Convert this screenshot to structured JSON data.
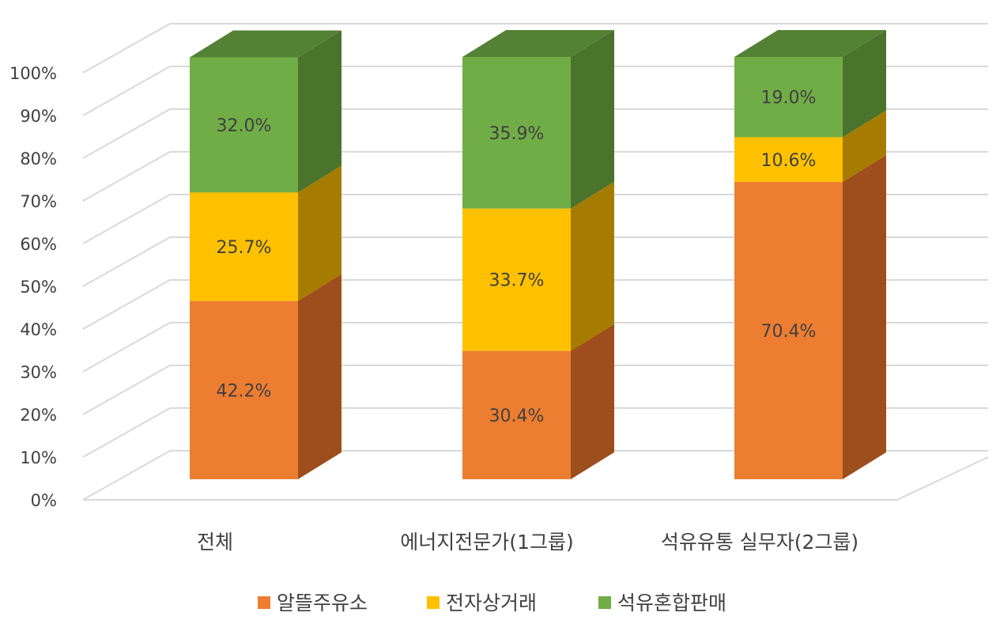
{
  "chart_data": {
    "type": "bar",
    "stacked": true,
    "percent_stacked": true,
    "three_d": true,
    "categories": [
      "전체",
      "에너지전문가(1그룹)",
      "석유유통 실무자(2그룹)"
    ],
    "series": [
      {
        "name": "알뜰주유소",
        "values": [
          42.2,
          30.4,
          70.4
        ],
        "labels": [
          "42.2%",
          "30.4%",
          "70.4%"
        ],
        "color": "#ED7D31",
        "side_color": "#9E4E1C",
        "top_color": "#F0A067"
      },
      {
        "name": "전자상거래",
        "values": [
          25.7,
          33.7,
          10.6
        ],
        "labels": [
          "25.7%",
          "33.7%",
          "10.6%"
        ],
        "color": "#FFC000",
        "side_color": "#A67C00",
        "top_color": "#FFD24D"
      },
      {
        "name": "석유혼합판매",
        "values": [
          32.0,
          35.9,
          19.0
        ],
        "labels": [
          "32.0%",
          "35.9%",
          "19.0%"
        ],
        "color": "#70AD47",
        "side_color": "#4A732C",
        "top_color": "#548235"
      }
    ],
    "y_ticks": [
      "0%",
      "10%",
      "20%",
      "30%",
      "40%",
      "50%",
      "60%",
      "70%",
      "80%",
      "90%",
      "100%"
    ],
    "ylim": [
      0,
      100
    ],
    "grid": true,
    "gridline_color": "#D9D9D9",
    "legend_position": "bottom"
  }
}
